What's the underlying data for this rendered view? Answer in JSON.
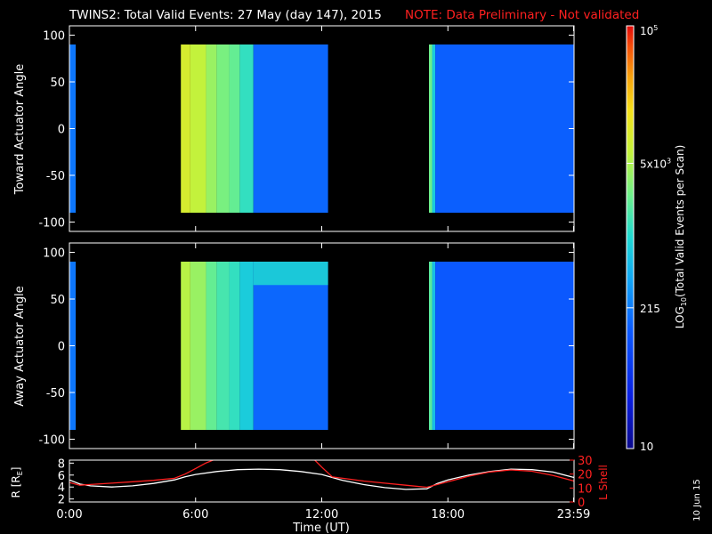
{
  "title": {
    "main": "TWINS2: Total Valid Events: 27 May (day 147), 2015",
    "note": "NOTE: Data Preliminary - Not validated"
  },
  "colors": {
    "note": "#ff2020",
    "orbit_l_shell": "#ff2020",
    "orbit_r": "#ffffff",
    "background": "#000000"
  },
  "chart_data": [
    {
      "type": "heatmap",
      "ylabel": "Toward Actuator Angle",
      "ylim": [
        -110,
        110
      ],
      "yticks": [
        100,
        50,
        0,
        -50,
        -100
      ],
      "xlim": [
        0,
        24
      ],
      "angle_range": [
        -90,
        90
      ],
      "color_scale": "log",
      "columns": [
        {
          "t_start": 0.0,
          "t_end": 0.3,
          "log10": 2.3
        },
        {
          "t_start": 5.3,
          "t_end": 5.75,
          "log10": 3.95
        },
        {
          "t_start": 5.75,
          "t_end": 6.5,
          "log10": 3.8
        },
        {
          "t_start": 6.5,
          "t_end": 7.0,
          "log10": 3.6
        },
        {
          "t_start": 7.0,
          "t_end": 7.6,
          "log10": 3.45
        },
        {
          "t_start": 7.6,
          "t_end": 8.1,
          "log10": 3.35
        },
        {
          "t_start": 8.1,
          "t_end": 8.75,
          "log10": 3.1
        },
        {
          "t_start": 8.75,
          "t_end": 12.3,
          "log10": 2.2
        },
        {
          "t_start": 17.1,
          "t_end": 17.25,
          "log10": 3.4
        },
        {
          "t_start": 17.25,
          "t_end": 17.4,
          "log10": 2.9
        },
        {
          "t_start": 17.4,
          "t_end": 23.98,
          "log10": 2.15
        }
      ]
    },
    {
      "type": "heatmap",
      "ylabel": "Away Actuator Angle",
      "ylim": [
        -110,
        110
      ],
      "yticks": [
        100,
        50,
        0,
        -50,
        -100
      ],
      "xlim": [
        0,
        24
      ],
      "angle_range": [
        -90,
        90
      ],
      "color_scale": "log",
      "columns": [
        {
          "t_start": 0.0,
          "t_end": 0.3,
          "log10": 2.3
        },
        {
          "t_start": 5.3,
          "t_end": 5.75,
          "log10": 3.75
        },
        {
          "t_start": 5.75,
          "t_end": 6.5,
          "log10": 3.6
        },
        {
          "t_start": 6.5,
          "t_end": 7.0,
          "log10": 3.35
        },
        {
          "t_start": 7.0,
          "t_end": 7.6,
          "log10": 3.2
        },
        {
          "t_start": 7.6,
          "t_end": 8.1,
          "log10": 3.1
        },
        {
          "t_start": 8.1,
          "t_end": 8.75,
          "log10": 2.9
        },
        {
          "t_start": 8.75,
          "t_end": 12.3,
          "log10": 2.2
        },
        {
          "t_start": 17.1,
          "t_end": 17.25,
          "log10": 3.3
        },
        {
          "t_start": 17.25,
          "t_end": 17.4,
          "log10": 2.8
        },
        {
          "t_start": 17.4,
          "t_end": 23.98,
          "log10": 2.1
        }
      ],
      "features": [
        {
          "t_start": 8.75,
          "t_end": 12.3,
          "angle_min": 65,
          "angle_max": 90,
          "log10": 3.0
        }
      ]
    },
    {
      "type": "line",
      "xlabel": "Time (UT)",
      "xticks": [
        "0:00",
        "6:00",
        "12:00",
        "18:00",
        "23:59"
      ],
      "xtick_hours": [
        0,
        6,
        12,
        18,
        23.98
      ],
      "left_axis": {
        "label": "R [R",
        "label_subscript": "E",
        "label_end": "]",
        "ylim": [
          1.5,
          8.5
        ],
        "yticks": [
          2,
          4,
          6,
          8
        ]
      },
      "right_axis": {
        "label": "L Shell",
        "ylim": [
          0,
          30
        ],
        "yticks": [
          0,
          10,
          20,
          30
        ]
      },
      "series": [
        {
          "axis": "left",
          "x": [
            0,
            0.5,
            1,
            2,
            3,
            4,
            5,
            5.5,
            6,
            7,
            8,
            9,
            10,
            11,
            12,
            12.5,
            13,
            14,
            15,
            16,
            17,
            17.5,
            18,
            19,
            20,
            21,
            22,
            23,
            24
          ],
          "y": [
            5.2,
            4.5,
            4.2,
            4.0,
            4.2,
            4.6,
            5.2,
            5.7,
            6.1,
            6.6,
            6.9,
            7.0,
            6.9,
            6.6,
            6.1,
            5.6,
            5.1,
            4.4,
            3.9,
            3.6,
            3.7,
            4.6,
            5.2,
            6.0,
            6.6,
            7.0,
            6.9,
            6.5,
            5.6
          ]
        },
        {
          "axis": "right",
          "x": [
            0,
            0.5,
            1,
            2,
            3,
            4,
            5,
            5.5,
            6,
            6.5,
            7,
            7.3,
            11.3,
            11.6,
            12,
            12.5,
            13,
            14,
            15,
            16,
            17,
            18,
            19,
            20,
            21,
            22,
            23,
            24
          ],
          "y": [
            14,
            12,
            12.5,
            13.5,
            14.5,
            15.5,
            17,
            20,
            24,
            28,
            31,
            33,
            33,
            31,
            25,
            18,
            17,
            15,
            13.5,
            12,
            10.5,
            14.5,
            18.5,
            21.5,
            23,
            22,
            19,
            15
          ]
        }
      ]
    }
  ],
  "colorbar": {
    "label_prefix": "LOG",
    "label_subscript": "10",
    "label_suffix": "(Total Valid Events per Scan)",
    "log_min": 1,
    "log_max": 5,
    "ticks": [
      {
        "log10": 5,
        "base": "10",
        "sup": "5"
      },
      {
        "log10": 3.699,
        "base": "5x10",
        "sup": "3"
      },
      {
        "log10": 2.332,
        "base": "215",
        "sup": ""
      },
      {
        "log10": 1,
        "base": "10",
        "sup": ""
      }
    ]
  },
  "date_stamp": "10 Jun 15"
}
